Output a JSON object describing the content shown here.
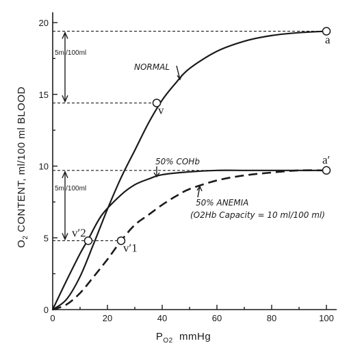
{
  "chart_data": {
    "type": "line",
    "title": "",
    "xlabel": {
      "main": "P",
      "sub": "O2",
      "unit": "mmHg"
    },
    "ylabel": {
      "pre": "O",
      "sub": "2",
      "rest": " CONTENT, ml/100 ml BLOOD"
    },
    "xlim": [
      0,
      100
    ],
    "ylim": [
      0,
      20
    ],
    "x_ticks": [
      0,
      20,
      40,
      60,
      80,
      100
    ],
    "y_ticks": [
      0,
      5,
      10,
      15,
      20
    ],
    "series": [
      {
        "name": "NORMAL",
        "style": "solid",
        "x": [
          0,
          5,
          10,
          15,
          20,
          25,
          30,
          35,
          40,
          45,
          50,
          60,
          70,
          80,
          90,
          100
        ],
        "y": [
          0,
          0.7,
          2.3,
          4.6,
          7.0,
          9.2,
          11.1,
          13.0,
          14.6,
          15.8,
          16.8,
          18.0,
          18.7,
          19.1,
          19.3,
          19.4
        ]
      },
      {
        "name": "50% COHb",
        "style": "solid",
        "x": [
          0,
          5,
          10,
          13,
          18,
          25,
          30,
          35,
          40,
          50,
          60,
          70,
          80,
          90,
          100
        ],
        "y": [
          0,
          2.0,
          3.9,
          4.9,
          6.6,
          8.0,
          8.7,
          9.1,
          9.4,
          9.6,
          9.7,
          9.7,
          9.7,
          9.7,
          9.7
        ]
      },
      {
        "name": "50% ANEMIA",
        "style": "dashed",
        "x": [
          0,
          5,
          10,
          15,
          20,
          25,
          30,
          35,
          40,
          45,
          50,
          60,
          70,
          80,
          90,
          100
        ],
        "y": [
          0,
          0.35,
          1.15,
          2.3,
          3.5,
          4.8,
          5.9,
          6.6,
          7.3,
          7.9,
          8.4,
          9.0,
          9.35,
          9.55,
          9.7,
          9.7
        ]
      }
    ],
    "points": [
      {
        "label": "a",
        "x": 100,
        "y": 19.4,
        "label_dx": -2,
        "label_dy": 18
      },
      {
        "label": "v",
        "x": 38,
        "y": 14.4,
        "label_dx": 2,
        "label_dy": 16
      },
      {
        "label": "a′",
        "x": 100,
        "y": 9.7,
        "label_dx": -6,
        "label_dy": -10
      },
      {
        "label": "v′1",
        "x": 25,
        "y": 4.8,
        "label_dx": 3,
        "label_dy": 16
      },
      {
        "label": "v′2",
        "x": 13,
        "y": 4.8,
        "label_dx": -24,
        "label_dy": -6
      }
    ],
    "annotations": {
      "normal": "NORMAL",
      "cohb": "50% COHb",
      "anemia_line1": "50% ANEMIA",
      "anemia_line2": "(O2Hb Capacity = 10 ml/100 ml)",
      "gap_top": "5ml/100ml",
      "gap_bottom": "5ml/100ml"
    },
    "reference_lines": [
      {
        "y": 19.4,
        "x_end": 100
      },
      {
        "y": 14.4,
        "x_end": 38
      },
      {
        "y": 9.7,
        "x_end": 100
      },
      {
        "y": 4.8,
        "x_end": 25
      }
    ],
    "grid": false
  }
}
